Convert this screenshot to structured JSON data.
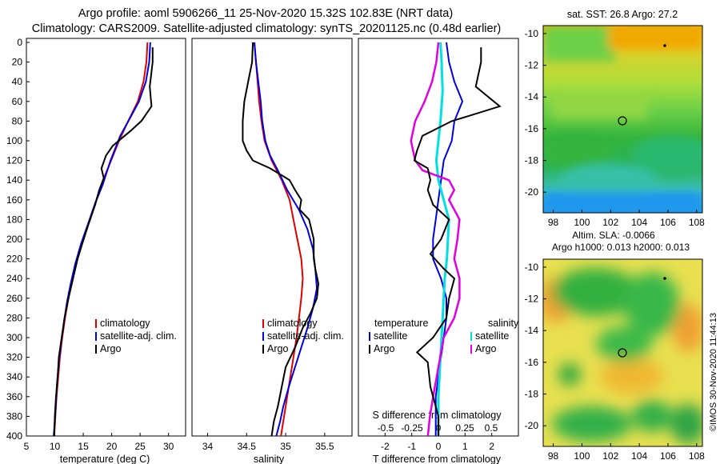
{
  "header": {
    "line1": "Argo profile: aoml 5906266_11 25-Nov-2020 15.32S 102.83E (NRT data)",
    "line2": "Climatology: CARS2009. Satellite-adjusted climatology: synTS_20201125.nc (0.48d earlier)"
  },
  "credit": "©IMOS 30-Nov-2020 11:44:13",
  "colors": {
    "climatology": "#e00000",
    "satellite": "#0000e0",
    "argo": "#000000",
    "argo_sal": "#e000e0",
    "sat_sal": "#00e0e0"
  },
  "chart_data": [
    {
      "type": "line",
      "name": "temperature",
      "xlabel": "temperature (deg C)",
      "ylabel": "",
      "xlim": [
        5,
        33
      ],
      "ylim": [
        400,
        0
      ],
      "xticks": [
        "5",
        "10",
        "15",
        "20",
        "25",
        "30"
      ],
      "yticks": [
        "0",
        "20",
        "40",
        "60",
        "80",
        "100",
        "120",
        "140",
        "160",
        "180",
        "200",
        "220",
        "240",
        "260",
        "280",
        "300",
        "320",
        "340",
        "360",
        "380",
        "400"
      ],
      "legend": [
        "climatology",
        "satellite-adj. clim.",
        "Argo"
      ],
      "series": [
        {
          "name": "climatology",
          "points": [
            [
              26.3,
              0
            ],
            [
              26.1,
              20
            ],
            [
              25.6,
              40
            ],
            [
              24.6,
              60
            ],
            [
              22.9,
              80
            ],
            [
              21.3,
              100
            ],
            [
              19.9,
              120
            ],
            [
              18.5,
              140
            ],
            [
              17.3,
              160
            ],
            [
              16.2,
              180
            ],
            [
              15.0,
              200
            ],
            [
              14.0,
              220
            ],
            [
              13.1,
              240
            ],
            [
              12.4,
              260
            ],
            [
              11.8,
              280
            ],
            [
              11.3,
              300
            ],
            [
              10.9,
              320
            ],
            [
              10.6,
              340
            ],
            [
              10.3,
              360
            ],
            [
              10.1,
              380
            ],
            [
              9.9,
              400
            ]
          ]
        },
        {
          "name": "satellite-adj. clim.",
          "points": [
            [
              26.8,
              0
            ],
            [
              26.6,
              20
            ],
            [
              26.0,
              40
            ],
            [
              24.8,
              60
            ],
            [
              23.4,
              75
            ],
            [
              21.5,
              95
            ],
            [
              19.8,
              120
            ],
            [
              18.4,
              145
            ],
            [
              17.0,
              165
            ],
            [
              15.8,
              185
            ],
            [
              14.6,
              205
            ],
            [
              13.6,
              225
            ],
            [
              12.8,
              245
            ],
            [
              12.1,
              265
            ],
            [
              11.6,
              285
            ],
            [
              11.1,
              305
            ],
            [
              10.7,
              325
            ],
            [
              10.4,
              345
            ],
            [
              10.2,
              365
            ],
            [
              10.0,
              385
            ],
            [
              9.8,
              400
            ]
          ]
        },
        {
          "name": "Argo",
          "points": [
            [
              27.2,
              5
            ],
            [
              27.2,
              20
            ],
            [
              26.7,
              45
            ],
            [
              27.0,
              65
            ],
            [
              25.2,
              80
            ],
            [
              23.3,
              90
            ],
            [
              20.2,
              105
            ],
            [
              19.0,
              115
            ],
            [
              18.2,
              128
            ],
            [
              18.6,
              138
            ],
            [
              17.8,
              150
            ],
            [
              17.1,
              165
            ],
            [
              15.9,
              185
            ],
            [
              14.8,
              205
            ],
            [
              14.0,
              220
            ],
            [
              13.2,
              240
            ],
            [
              12.4,
              260
            ],
            [
              11.7,
              280
            ],
            [
              11.2,
              300
            ],
            [
              10.7,
              320
            ],
            [
              10.5,
              340
            ],
            [
              10.2,
              360
            ],
            [
              10.0,
              380
            ],
            [
              9.9,
              400
            ]
          ]
        }
      ]
    },
    {
      "type": "line",
      "name": "salinity",
      "xlabel": "salinity",
      "ylabel": "",
      "xlim": [
        33.8,
        35.85
      ],
      "ylim": [
        400,
        0
      ],
      "xticks": [
        "34",
        "34.5",
        "35",
        "35.5"
      ],
      "legend": [
        "climatology",
        "satellite-adj. clim.",
        "Argo"
      ],
      "series": [
        {
          "name": "climatology",
          "points": [
            [
              34.6,
              0
            ],
            [
              34.62,
              20
            ],
            [
              34.64,
              40
            ],
            [
              34.66,
              60
            ],
            [
              34.69,
              80
            ],
            [
              34.73,
              100
            ],
            [
              34.82,
              120
            ],
            [
              34.95,
              140
            ],
            [
              35.05,
              160
            ],
            [
              35.1,
              180
            ],
            [
              35.15,
              200
            ],
            [
              35.2,
              220
            ],
            [
              35.22,
              240
            ],
            [
              35.2,
              260
            ],
            [
              35.17,
              280
            ],
            [
              35.14,
              300
            ],
            [
              35.1,
              320
            ],
            [
              35.06,
              340
            ],
            [
              35.02,
              360
            ],
            [
              34.98,
              380
            ],
            [
              34.94,
              400
            ]
          ]
        },
        {
          "name": "satellite-adj. clim.",
          "points": [
            [
              34.6,
              0
            ],
            [
              34.62,
              20
            ],
            [
              34.65,
              40
            ],
            [
              34.68,
              60
            ],
            [
              34.7,
              80
            ],
            [
              34.74,
              100
            ],
            [
              34.8,
              115
            ],
            [
              34.9,
              130
            ],
            [
              35.02,
              150
            ],
            [
              35.17,
              170
            ],
            [
              35.28,
              190
            ],
            [
              35.35,
              210
            ],
            [
              35.38,
              230
            ],
            [
              35.4,
              250
            ],
            [
              35.35,
              270
            ],
            [
              35.28,
              290
            ],
            [
              35.2,
              310
            ],
            [
              35.12,
              330
            ],
            [
              35.04,
              350
            ],
            [
              34.97,
              370
            ],
            [
              34.93,
              385
            ],
            [
              34.88,
              400
            ]
          ]
        },
        {
          "name": "Argo",
          "points": [
            [
              34.58,
              0
            ],
            [
              34.57,
              20
            ],
            [
              34.52,
              40
            ],
            [
              34.47,
              60
            ],
            [
              34.45,
              80
            ],
            [
              34.45,
              100
            ],
            [
              34.5,
              110
            ],
            [
              34.58,
              120
            ],
            [
              34.8,
              128
            ],
            [
              34.95,
              135
            ],
            [
              35.05,
              140
            ],
            [
              35.12,
              150
            ],
            [
              35.2,
              160
            ],
            [
              35.18,
              170
            ],
            [
              35.3,
              180
            ],
            [
              35.36,
              200
            ],
            [
              35.36,
              220
            ],
            [
              35.38,
              230
            ],
            [
              35.42,
              245
            ],
            [
              35.4,
              260
            ],
            [
              35.32,
              275
            ],
            [
              35.22,
              290
            ],
            [
              35.12,
              310
            ],
            [
              35.0,
              330
            ],
            [
              34.95,
              350
            ],
            [
              34.9,
              370
            ],
            [
              34.85,
              385
            ],
            [
              34.82,
              400
            ]
          ]
        }
      ]
    },
    {
      "type": "line",
      "name": "difference",
      "xlabel": "T difference from climatology",
      "s_axis_label": "S difference from climatology",
      "ylabel": "",
      "xlim": [
        -3,
        3
      ],
      "ylim": [
        400,
        0
      ],
      "xticks": [
        "-2",
        "-1",
        "0",
        "1",
        "2"
      ],
      "s_ticks": [
        "-0.5",
        "-0.25",
        "0",
        "0.25",
        "0.5"
      ],
      "legend_headers": [
        "temperature",
        "salinity"
      ],
      "legend_left": [
        "satellite",
        "Argo"
      ],
      "legend_right": [
        "satellite",
        "Argo"
      ],
      "series": [
        {
          "name": "T satellite",
          "points": [
            [
              0.3,
              0
            ],
            [
              0.4,
              20
            ],
            [
              0.6,
              40
            ],
            [
              0.9,
              60
            ],
            [
              0.6,
              80
            ],
            [
              0.5,
              100
            ],
            [
              0.2,
              120
            ],
            [
              0.1,
              140
            ],
            [
              0.0,
              160
            ],
            [
              -0.1,
              180
            ],
            [
              -0.2,
              200
            ],
            [
              -0.2,
              220
            ],
            [
              0.1,
              240
            ],
            [
              0.3,
              260
            ],
            [
              0.3,
              280
            ],
            [
              0.2,
              300
            ],
            [
              0.1,
              320
            ],
            [
              0.0,
              340
            ],
            [
              -0.1,
              360
            ],
            [
              -0.1,
              380
            ],
            [
              -0.1,
              400
            ]
          ]
        },
        {
          "name": "T Argo",
          "points": [
            [
              1.6,
              5
            ],
            [
              1.6,
              20
            ],
            [
              1.4,
              45
            ],
            [
              2.3,
              65
            ],
            [
              1.1,
              75
            ],
            [
              0.5,
              80
            ],
            [
              -0.6,
              95
            ],
            [
              -0.8,
              110
            ],
            [
              -0.9,
              120
            ],
            [
              -0.4,
              128
            ],
            [
              -0.3,
              140
            ],
            [
              -0.4,
              150
            ],
            [
              -0.2,
              165
            ],
            [
              0.4,
              180
            ],
            [
              0.1,
              200
            ],
            [
              -0.3,
              215
            ],
            [
              0.2,
              230
            ],
            [
              0.6,
              240
            ],
            [
              0.4,
              260
            ],
            [
              0.3,
              280
            ],
            [
              -0.2,
              300
            ],
            [
              -0.8,
              315
            ],
            [
              -0.4,
              325
            ],
            [
              -0.3,
              350
            ],
            [
              0.0,
              380
            ],
            [
              0.0,
              400
            ]
          ]
        },
        {
          "name": "S satellite",
          "points": [
            [
              0.02,
              0
            ],
            [
              0.03,
              20
            ],
            [
              0.04,
              50
            ],
            [
              0.02,
              80
            ],
            [
              0.0,
              100
            ],
            [
              -0.02,
              120
            ],
            [
              0.0,
              140
            ],
            [
              0.05,
              160
            ],
            [
              0.1,
              180
            ],
            [
              0.09,
              200
            ],
            [
              0.08,
              220
            ],
            [
              0.06,
              240
            ],
            [
              0.05,
              260
            ],
            [
              0.04,
              280
            ],
            [
              0.03,
              300
            ],
            [
              0.02,
              320
            ],
            [
              0.01,
              340
            ],
            [
              0.0,
              360
            ],
            [
              0.0,
              380
            ],
            [
              0.0,
              400
            ]
          ]
        },
        {
          "name": "S Argo",
          "points": [
            [
              0.0,
              0
            ],
            [
              -0.02,
              20
            ],
            [
              -0.06,
              40
            ],
            [
              -0.13,
              60
            ],
            [
              -0.22,
              80
            ],
            [
              -0.26,
              100
            ],
            [
              -0.22,
              120
            ],
            [
              -0.15,
              130
            ],
            [
              0.1,
              140
            ],
            [
              0.15,
              150
            ],
            [
              0.1,
              160
            ],
            [
              0.2,
              180
            ],
            [
              0.18,
              200
            ],
            [
              0.15,
              220
            ],
            [
              0.2,
              240
            ],
            [
              0.2,
              260
            ],
            [
              0.15,
              280
            ],
            [
              0.05,
              300
            ],
            [
              0.0,
              330
            ],
            [
              -0.05,
              360
            ],
            [
              -0.08,
              380
            ],
            [
              -0.1,
              400
            ]
          ]
        }
      ]
    },
    {
      "type": "heatmap",
      "name": "sst_map",
      "title": "sat. SST: 26.8 Argo: 27.2",
      "xticks": [
        "98",
        "100",
        "102",
        "104",
        "106",
        "108"
      ],
      "yticks": [
        "-10",
        "-12",
        "-14",
        "-16",
        "-18",
        "-20"
      ],
      "float_position": [
        102.83,
        -15.32
      ]
    },
    {
      "type": "heatmap",
      "name": "sla_map",
      "title": "Altim. SLA: -0.0066",
      "subtitle": "Argo h1000: 0.013 h2000: 0.013",
      "xticks": [
        "98",
        "100",
        "102",
        "104",
        "106",
        "108"
      ],
      "yticks": [
        "-10",
        "-12",
        "-14",
        "-16",
        "-18",
        "-20"
      ],
      "float_position": [
        102.83,
        -15.32
      ]
    }
  ]
}
